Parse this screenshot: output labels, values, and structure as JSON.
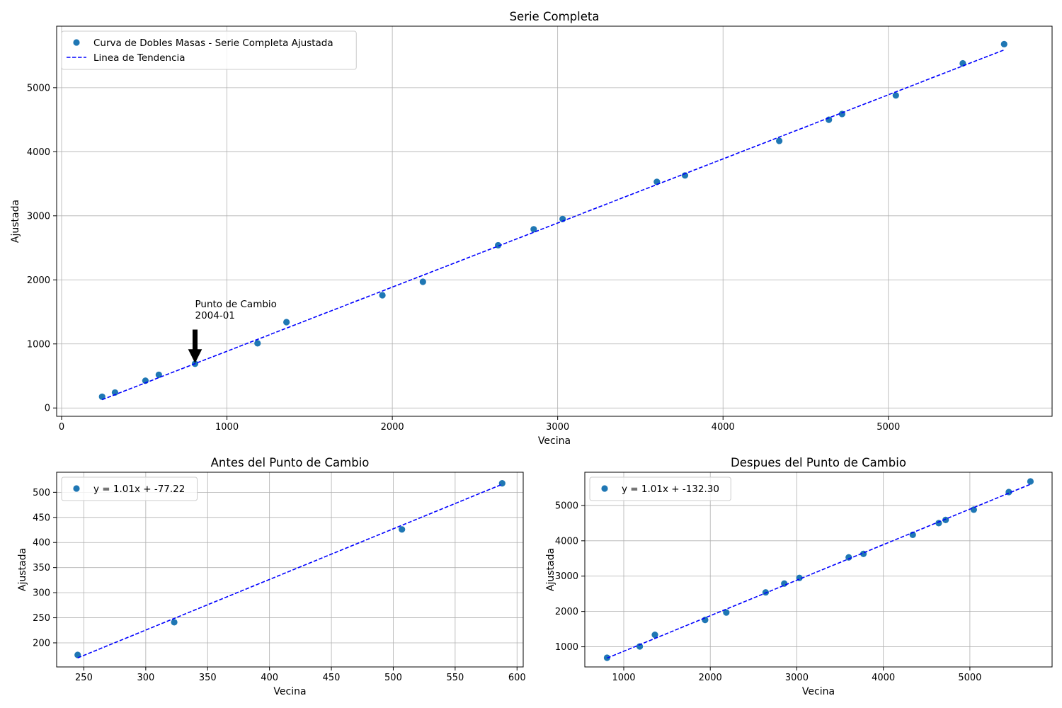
{
  "chart_data": [
    {
      "type": "scatter",
      "title": "Serie Completa",
      "xlabel": "Vecina",
      "ylabel": "Ajustada",
      "xlim": [
        -30,
        5990
      ],
      "ylim": [
        -130,
        5960
      ],
      "xticks": [
        0,
        1000,
        2000,
        3000,
        4000,
        5000
      ],
      "yticks": [
        0,
        1000,
        2000,
        3000,
        4000,
        5000
      ],
      "grid": true,
      "legend_position": "top-left",
      "series": [
        {
          "name": "Curva de Dobles Masas - Serie Completa Ajustada",
          "kind": "points",
          "color": "#1f77b4",
          "x": [
            245,
            323,
            507,
            588,
            807,
            1185,
            1360,
            1940,
            2185,
            2640,
            2855,
            3030,
            3600,
            3770,
            4340,
            4640,
            4720,
            5045,
            5450,
            5700
          ],
          "y": [
            176,
            241,
            426,
            518,
            690,
            1010,
            1340,
            1760,
            1970,
            2540,
            2790,
            2950,
            3530,
            3630,
            4170,
            4500,
            4590,
            4880,
            5380,
            5680
          ]
        },
        {
          "name": "Linea de Tendencia",
          "kind": "dashed-line",
          "color": "#0000ff",
          "x": [
            245,
            5700
          ],
          "y": [
            130,
            5590
          ]
        }
      ],
      "annotation": {
        "lines": [
          "Punto de Cambio",
          "2004-01"
        ],
        "x": 807,
        "y": 690,
        "text_x": 807,
        "text_y": 1240
      }
    },
    {
      "type": "scatter",
      "title": "Antes del Punto de Cambio",
      "xlabel": "Vecina",
      "ylabel": "Ajustada",
      "xlim": [
        228,
        605
      ],
      "ylim": [
        152,
        540
      ],
      "xticks": [
        250,
        300,
        350,
        400,
        450,
        500,
        550,
        600
      ],
      "yticks": [
        200,
        250,
        300,
        350,
        400,
        450,
        500
      ],
      "grid": true,
      "legend_position": "top-left",
      "series": [
        {
          "name": "y = 1.01x + -77.22",
          "kind": "points",
          "color": "#1f77b4",
          "x": [
            245,
            323,
            507,
            588
          ],
          "y": [
            176,
            241,
            426,
            518
          ]
        },
        {
          "kind": "dashed-line",
          "color": "#0000ff",
          "x": [
            245,
            588
          ],
          "y": [
            170,
            516
          ]
        }
      ]
    },
    {
      "type": "scatter",
      "title": "Despues del Punto de Cambio",
      "xlabel": "Vecina",
      "ylabel": "Ajustada",
      "xlim": [
        550,
        5950
      ],
      "ylim": [
        430,
        5940
      ],
      "xticks": [
        1000,
        2000,
        3000,
        4000,
        5000
      ],
      "yticks": [
        1000,
        2000,
        3000,
        4000,
        5000
      ],
      "grid": true,
      "legend_position": "top-left",
      "series": [
        {
          "name": "y = 1.01x + -132.30",
          "kind": "points",
          "color": "#1f77b4",
          "x": [
            807,
            1185,
            1360,
            1940,
            2185,
            2640,
            2855,
            3030,
            3600,
            3770,
            4340,
            4640,
            4720,
            5045,
            5450,
            5700
          ],
          "y": [
            690,
            1010,
            1340,
            1760,
            1970,
            2540,
            2790,
            2950,
            3530,
            3630,
            4170,
            4500,
            4590,
            4880,
            5380,
            5680
          ]
        },
        {
          "kind": "dashed-line",
          "color": "#0000ff",
          "x": [
            807,
            5700
          ],
          "y": [
            680,
            5600
          ]
        }
      ]
    }
  ]
}
